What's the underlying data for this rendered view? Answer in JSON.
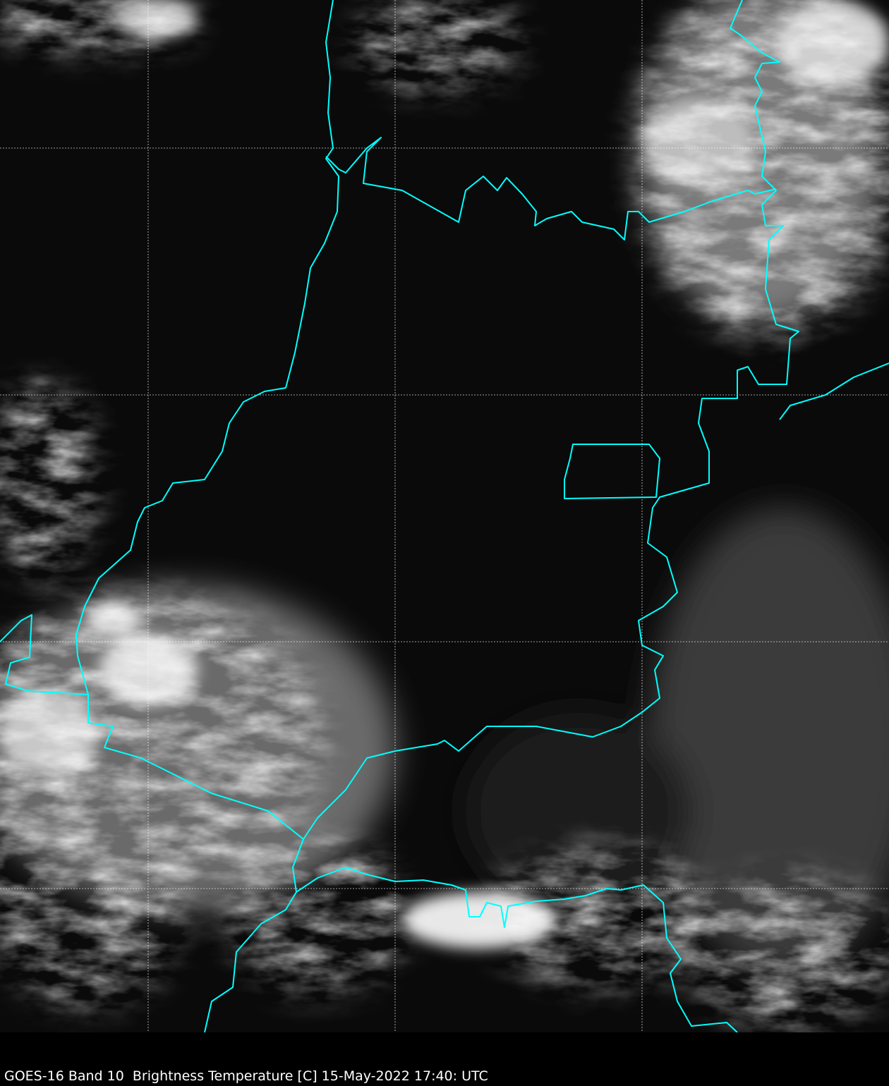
{
  "caption": "GOES-16 Band 10  Brightness Temperature [C] 15-May-2022 17:40: UTC",
  "colors": {
    "background": "#000000",
    "borders": "#00ffff",
    "gridlines": "#ffffff"
  },
  "map": {
    "gridlines": true,
    "borders": "state boundaries",
    "colormap": "grayscale"
  }
}
